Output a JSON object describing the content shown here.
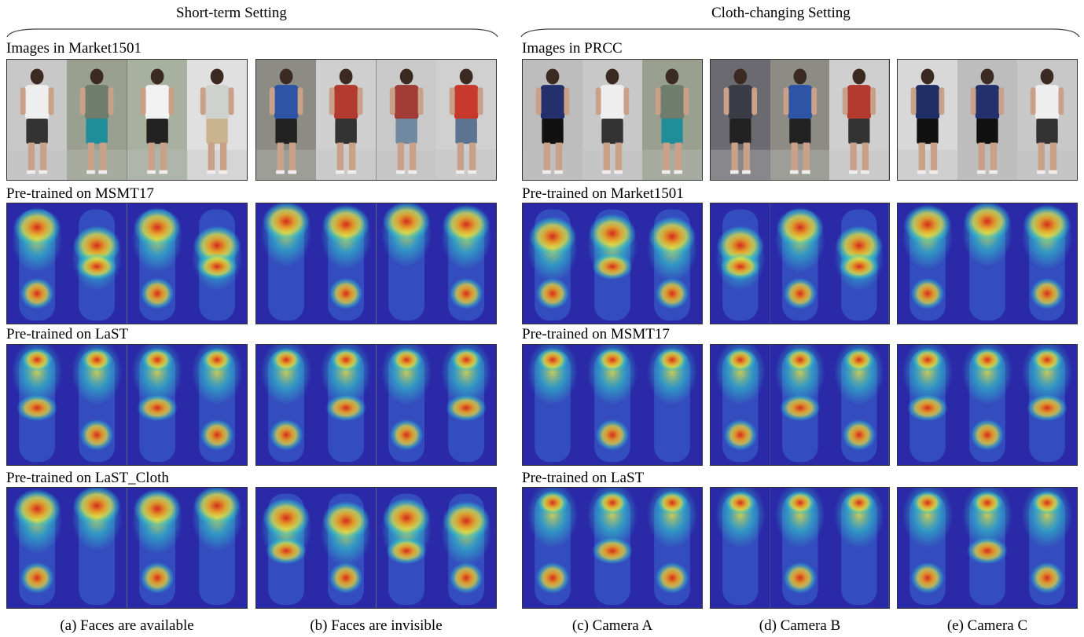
{
  "sections": {
    "left_title": "Short-term Setting",
    "right_title": "Cloth-changing Setting"
  },
  "left_rows": [
    {
      "label": "Images in Market1501",
      "kind": "photo"
    },
    {
      "label": "Pre-trained on MSMT17",
      "kind": "heat"
    },
    {
      "label": "Pre-trained on LaST",
      "kind": "heat"
    },
    {
      "label": "Pre-trained on LaST_Cloth",
      "kind": "heat"
    }
  ],
  "right_rows": [
    {
      "label": "Images in PRCC",
      "kind": "photo"
    },
    {
      "label": "Pre-trained on Market1501",
      "kind": "heat"
    },
    {
      "label": "Pre-trained on MSMT17",
      "kind": "heat"
    },
    {
      "label": "Pre-trained on LaST",
      "kind": "heat"
    }
  ],
  "captions": {
    "a": "(a) Faces are available",
    "b": "(b) Faces are invisible",
    "c": "(c) Camera A",
    "d": "(d) Camera B",
    "e": "(e) Camera C"
  },
  "colors": {
    "heat_low": "#2a2aa8",
    "heat_mid": "#31c6c9",
    "heat_high": "#d42a1c",
    "frame": "#333333"
  }
}
